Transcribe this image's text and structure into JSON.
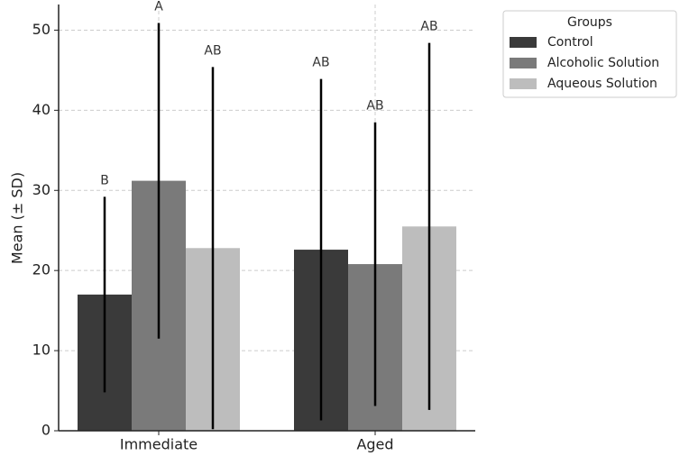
{
  "chart_data": {
    "type": "bar",
    "ylabel": "Mean (± SD)",
    "categories": [
      "Immediate",
      "Aged"
    ],
    "legend_title": "Groups",
    "legend_position": "upper right outside",
    "series": [
      {
        "name": "Control",
        "color": "#3a3a3a",
        "values": [
          17.0,
          22.6
        ],
        "errors": [
          12.2,
          21.3
        ],
        "annotations": [
          "B",
          "AB"
        ]
      },
      {
        "name": "Alcoholic Solution",
        "color": "#7a7a7a",
        "values": [
          31.2,
          20.8
        ],
        "errors": [
          19.7,
          17.7
        ],
        "annotations": [
          "A",
          "AB"
        ]
      },
      {
        "name": "Aqueous Solution",
        "color": "#bdbdbd",
        "values": [
          22.8,
          25.5
        ],
        "errors": [
          22.6,
          22.9
        ],
        "annotations": [
          "AB",
          "AB"
        ]
      }
    ],
    "ylim": [
      0,
      53.2
    ],
    "yticks": [
      0,
      10,
      20,
      30,
      40,
      50
    ],
    "grid": true
  }
}
